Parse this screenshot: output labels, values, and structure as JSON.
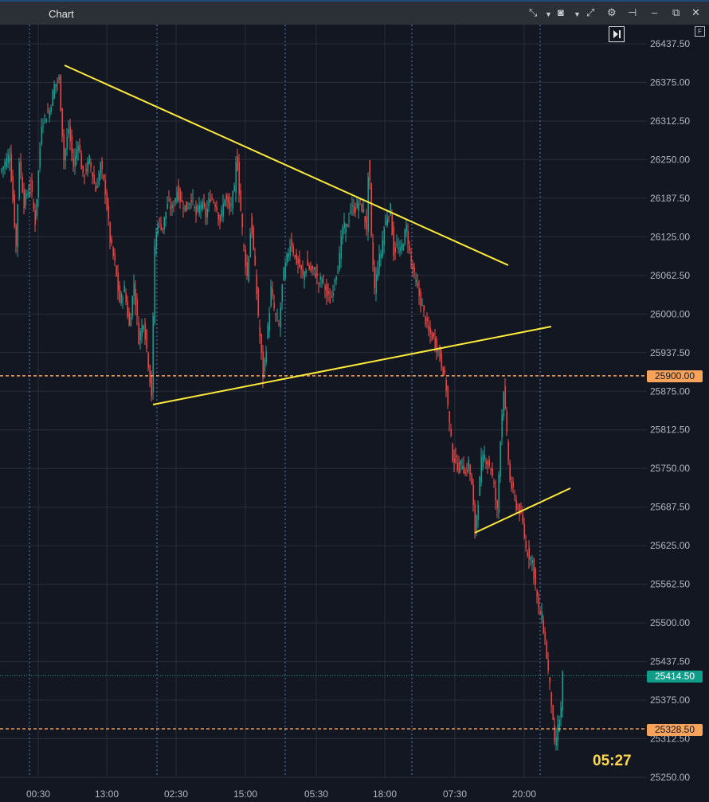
{
  "window": {
    "title": "Chart"
  },
  "toolbar": {
    "icons": [
      "compress-arrows-icon",
      "dropdown-caret-icon",
      "camera-icon",
      "dropdown-caret-icon",
      "expand-arrows-icon",
      "gear-icon",
      "pin-icon",
      "minimize-icon",
      "restore-icon",
      "close-icon"
    ]
  },
  "badges": {
    "flag": "F",
    "countdown": "05:27"
  },
  "chart_data": {
    "type": "candlestick",
    "title": "",
    "ylim": [
      25250,
      26437.5
    ],
    "y_ticks": [
      "26437.50",
      "26375.00",
      "26312.50",
      "26250.00",
      "26187.50",
      "26125.00",
      "26062.50",
      "26000.00",
      "25937.50",
      "25875.00",
      "25812.50",
      "25750.00",
      "25687.50",
      "25625.00",
      "25562.50",
      "25500.00",
      "25437.50",
      "25375.00",
      "25312.50",
      "25250.00"
    ],
    "x_ticks": [
      "00:30",
      "13:00",
      "02:30",
      "15:00",
      "05:30",
      "18:00",
      "07:30",
      "20:00"
    ],
    "current_price": "25414.50",
    "horizontal_levels": [
      "25900.00",
      "25328.50"
    ],
    "price_path": [
      [
        0,
        26230
      ],
      [
        12,
        26260
      ],
      [
        20,
        26110
      ],
      [
        24,
        26250
      ],
      [
        30,
        26180
      ],
      [
        38,
        26210
      ],
      [
        44,
        26150
      ],
      [
        52,
        26310
      ],
      [
        62,
        26330
      ],
      [
        68,
        26370
      ],
      [
        74,
        26380
      ],
      [
        80,
        26250
      ],
      [
        86,
        26300
      ],
      [
        92,
        26240
      ],
      [
        98,
        26280
      ],
      [
        104,
        26220
      ],
      [
        112,
        26250
      ],
      [
        120,
        26200
      ],
      [
        126,
        26240
      ],
      [
        132,
        26200
      ],
      [
        138,
        26120
      ],
      [
        144,
        26080
      ],
      [
        150,
        26020
      ],
      [
        156,
        26040
      ],
      [
        162,
        25980
      ],
      [
        168,
        26050
      ],
      [
        174,
        25960
      ],
      [
        180,
        25990
      ],
      [
        186,
        25920
      ],
      [
        190,
        25870
      ],
      [
        194,
        26110
      ],
      [
        198,
        26150
      ],
      [
        204,
        26140
      ],
      [
        210,
        26180
      ],
      [
        216,
        26170
      ],
      [
        222,
        26200
      ],
      [
        228,
        26180
      ],
      [
        234,
        26170
      ],
      [
        240,
        26190
      ],
      [
        246,
        26160
      ],
      [
        252,
        26180
      ],
      [
        258,
        26160
      ],
      [
        264,
        26190
      ],
      [
        270,
        26180
      ],
      [
        276,
        26150
      ],
      [
        282,
        26190
      ],
      [
        288,
        26170
      ],
      [
        294,
        26200
      ],
      [
        297,
        26260
      ],
      [
        300,
        26200
      ],
      [
        305,
        26120
      ],
      [
        310,
        26060
      ],
      [
        315,
        26150
      ],
      [
        320,
        26070
      ],
      [
        325,
        25980
      ],
      [
        330,
        25900
      ],
      [
        335,
        25960
      ],
      [
        340,
        26040
      ],
      [
        345,
        26000
      ],
      [
        350,
        25980
      ],
      [
        355,
        26060
      ],
      [
        360,
        26090
      ],
      [
        365,
        26120
      ],
      [
        370,
        26090
      ],
      [
        375,
        26080
      ],
      [
        380,
        26060
      ],
      [
        385,
        26080
      ],
      [
        390,
        26070
      ],
      [
        395,
        26070
      ],
      [
        400,
        26050
      ],
      [
        405,
        26060
      ],
      [
        410,
        26030
      ],
      [
        415,
        26020
      ],
      [
        420,
        26060
      ],
      [
        425,
        26080
      ],
      [
        430,
        26140
      ],
      [
        435,
        26140
      ],
      [
        440,
        26170
      ],
      [
        445,
        26170
      ],
      [
        450,
        26180
      ],
      [
        455,
        26170
      ],
      [
        460,
        26140
      ],
      [
        463,
        26250
      ],
      [
        466,
        26120
      ],
      [
        470,
        26040
      ],
      [
        474,
        26080
      ],
      [
        478,
        26100
      ],
      [
        482,
        26140
      ],
      [
        486,
        26160
      ],
      [
        490,
        26170
      ],
      [
        494,
        26100
      ],
      [
        498,
        26110
      ],
      [
        502,
        26100
      ],
      [
        506,
        26120
      ],
      [
        510,
        26140
      ],
      [
        514,
        26100
      ],
      [
        520,
        26060
      ],
      [
        526,
        26030
      ],
      [
        532,
        26000
      ],
      [
        538,
        25970
      ],
      [
        544,
        25960
      ],
      [
        550,
        25940
      ],
      [
        556,
        25910
      ],
      [
        560,
        25880
      ],
      [
        564,
        25820
      ],
      [
        568,
        25770
      ],
      [
        572,
        25760
      ],
      [
        576,
        25750
      ],
      [
        580,
        25760
      ],
      [
        584,
        25740
      ],
      [
        588,
        25760
      ],
      [
        592,
        25720
      ],
      [
        596,
        25650
      ],
      [
        600,
        25700
      ],
      [
        604,
        25760
      ],
      [
        608,
        25770
      ],
      [
        612,
        25760
      ],
      [
        616,
        25750
      ],
      [
        620,
        25720
      ],
      [
        624,
        25680
      ],
      [
        628,
        25800
      ],
      [
        632,
        25880
      ],
      [
        636,
        25800
      ],
      [
        640,
        25730
      ],
      [
        644,
        25710
      ],
      [
        648,
        25690
      ],
      [
        652,
        25680
      ],
      [
        656,
        25660
      ],
      [
        660,
        25620
      ],
      [
        664,
        25610
      ],
      [
        668,
        25600
      ],
      [
        672,
        25560
      ],
      [
        676,
        25520
      ],
      [
        680,
        25510
      ],
      [
        684,
        25470
      ],
      [
        688,
        25420
      ],
      [
        692,
        25370
      ],
      [
        696,
        25300
      ],
      [
        700,
        25330
      ],
      [
        704,
        25360
      ],
      [
        706,
        25414.5
      ]
    ],
    "colors": {
      "background": "#131722",
      "grid": "#2a2e39",
      "session_separator": "#4f7fbf",
      "trendline": "#ffeb3b",
      "bull": "#26a69a",
      "bear": "#ef5350",
      "level": "#f7a35c",
      "current_price": "#0f9d8a"
    }
  }
}
